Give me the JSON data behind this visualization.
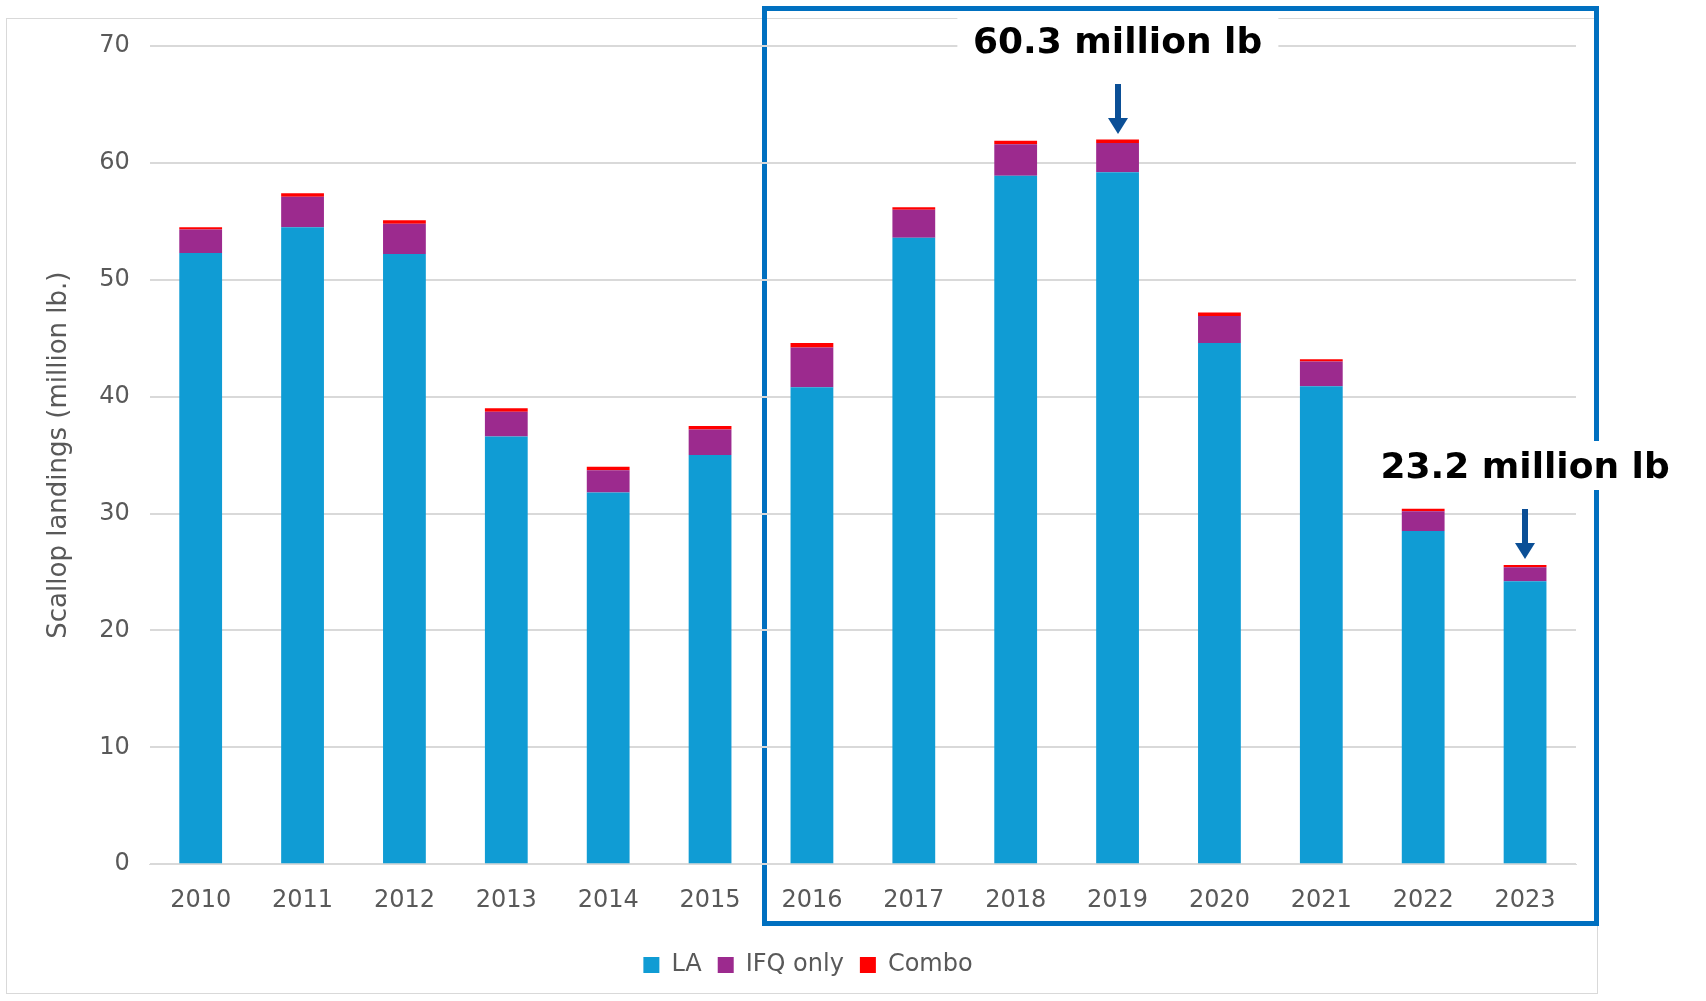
{
  "chart_data": {
    "type": "bar",
    "stacked": true,
    "ylabel": "Scallop landings (million lb.)",
    "categories": [
      "2010",
      "2011",
      "2012",
      "2013",
      "2014",
      "2015",
      "2016",
      "2017",
      "2018",
      "2019",
      "2020",
      "2021",
      "2022",
      "2023"
    ],
    "series": [
      {
        "name": "LA",
        "color": "#109cd4",
        "values": [
          52.3,
          54.5,
          52.2,
          36.6,
          31.8,
          35.0,
          40.8,
          53.6,
          58.9,
          59.2,
          44.6,
          40.9,
          28.5,
          24.2
        ]
      },
      {
        "name": "IFQ only",
        "color": "#9c2a8e",
        "values": [
          2.0,
          2.6,
          2.6,
          2.1,
          1.9,
          2.2,
          3.4,
          2.4,
          2.7,
          2.5,
          2.3,
          2.1,
          1.7,
          1.2
        ]
      },
      {
        "name": "Combo",
        "color": "#ff0000",
        "values": [
          0.2,
          0.3,
          0.3,
          0.3,
          0.3,
          0.3,
          0.4,
          0.2,
          0.3,
          0.3,
          0.3,
          0.2,
          0.2,
          0.2
        ]
      }
    ],
    "ylim": [
      0,
      70
    ],
    "yticks": [
      0,
      10,
      20,
      30,
      40,
      50,
      60,
      70
    ],
    "grid": "y",
    "legend": "bottom",
    "annotations": [
      {
        "text": "60.3 million lb",
        "x": "2019",
        "y": 62.0
      },
      {
        "text": "23.2 million lb",
        "x": "2023",
        "y": 25.6
      }
    ]
  }
}
